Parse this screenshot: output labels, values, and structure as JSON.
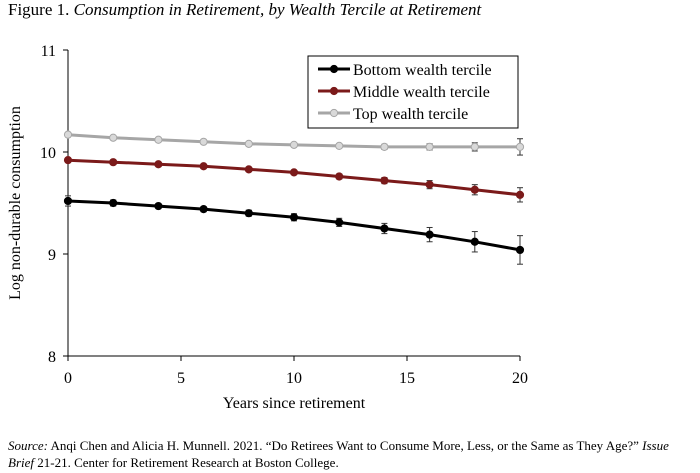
{
  "figure": {
    "label": "Figure 1.",
    "title": "Consumption in Retirement, by Wealth Tercile at Retirement"
  },
  "source": {
    "label": "Source:",
    "text1": "Anqi Chen and Alicia H. Munnell. 2021. “Do Retirees Want to Consume More, Less, or the Same as They Age?”",
    "publication": "Issue Brief",
    "text2": "21-21. Center for Retirement Research at Boston College."
  },
  "chart_data": {
    "type": "line",
    "xlabel": "Years since retirement",
    "ylabel": "Log non-durable consumption",
    "xlim": [
      0,
      20
    ],
    "ylim": [
      8,
      11
    ],
    "xticks": [
      0,
      5,
      10,
      15,
      20
    ],
    "yticks": [
      8,
      9,
      10,
      11
    ],
    "grid": false,
    "legend_position": "top-right",
    "x": [
      0,
      2,
      4,
      6,
      8,
      10,
      12,
      14,
      16,
      18,
      20
    ],
    "series": [
      {
        "name": "Bottom wealth tercile",
        "color": "#000000",
        "marker_fill": "#000000",
        "values": [
          9.52,
          9.5,
          9.47,
          9.44,
          9.4,
          9.36,
          9.31,
          9.25,
          9.19,
          9.12,
          9.04
        ],
        "error": [
          0.05,
          0.03,
          0.02,
          0.025,
          0.03,
          0.035,
          0.04,
          0.05,
          0.07,
          0.1,
          0.14
        ]
      },
      {
        "name": "Middle wealth tercile",
        "color": "#7b1a1a",
        "marker_fill": "#7b1a1a",
        "values": [
          9.92,
          9.9,
          9.88,
          9.86,
          9.83,
          9.8,
          9.76,
          9.72,
          9.68,
          9.63,
          9.58
        ],
        "error": [
          0.02,
          0.015,
          0.015,
          0.015,
          0.015,
          0.02,
          0.025,
          0.03,
          0.04,
          0.05,
          0.07
        ]
      },
      {
        "name": "Top wealth tercile",
        "color": "#a6a6a6",
        "marker_fill": "#d9d9d9",
        "values": [
          10.17,
          10.14,
          10.12,
          10.1,
          10.08,
          10.07,
          10.06,
          10.05,
          10.05,
          10.05,
          10.05
        ],
        "error": [
          0.02,
          0.015,
          0.015,
          0.015,
          0.015,
          0.015,
          0.02,
          0.025,
          0.03,
          0.04,
          0.08
        ]
      }
    ]
  }
}
